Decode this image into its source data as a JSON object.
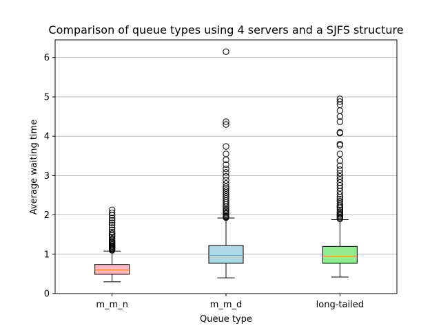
{
  "chart_data": {
    "type": "box",
    "title": "Comparison of queue types using 4 servers and a SJFS structure",
    "xlabel": "Queue type",
    "ylabel": "Average waiting time",
    "ylim": [
      0,
      6.45
    ],
    "yticks": [
      0,
      1,
      2,
      3,
      4,
      5,
      6
    ],
    "grid": "y",
    "categories": [
      "m_m_n",
      "m_m_d",
      "long-tailed"
    ],
    "colors": [
      "#ffb6c1",
      "#add8e6",
      "#90ee90"
    ],
    "median_color": "#ff7f0e",
    "boxes": [
      {
        "name": "m_m_n",
        "whisker_low": 0.3,
        "q1": 0.49,
        "median": 0.6,
        "q3": 0.74,
        "whisker_high": 1.08,
        "fliers": [
          1.1,
          1.12,
          1.14,
          1.16,
          1.18,
          1.2,
          1.22,
          1.25,
          1.28,
          1.3,
          1.33,
          1.36,
          1.4,
          1.44,
          1.48,
          1.52,
          1.56,
          1.62,
          1.68,
          1.74,
          1.8,
          1.86,
          1.92,
          1.99,
          2.05,
          2.13
        ]
      },
      {
        "name": "m_m_d",
        "whisker_low": 0.4,
        "q1": 0.77,
        "median": 0.97,
        "q3": 1.22,
        "whisker_high": 1.92,
        "fliers": [
          1.93,
          1.95,
          1.97,
          2.0,
          2.03,
          2.06,
          2.1,
          2.14,
          2.18,
          2.22,
          2.27,
          2.32,
          2.37,
          2.42,
          2.47,
          2.52,
          2.57,
          2.62,
          2.67,
          2.72,
          2.8,
          2.88,
          2.98,
          3.08,
          3.17,
          3.28,
          3.4,
          3.55,
          3.74,
          4.3,
          4.37,
          6.15
        ]
      },
      {
        "name": "long-tailed",
        "whisker_low": 0.42,
        "q1": 0.77,
        "median": 0.95,
        "q3": 1.2,
        "whisker_high": 1.88,
        "fliers": [
          1.9,
          1.92,
          1.95,
          1.98,
          2.01,
          2.04,
          2.08,
          2.12,
          2.16,
          2.2,
          2.25,
          2.3,
          2.35,
          2.4,
          2.45,
          2.52,
          2.6,
          2.68,
          2.75,
          2.82,
          2.9,
          2.98,
          3.06,
          3.15,
          3.25,
          3.38,
          3.55,
          3.77,
          3.8,
          4.08,
          4.1,
          4.37,
          4.5,
          4.65,
          4.8,
          4.88,
          4.95
        ]
      }
    ]
  }
}
